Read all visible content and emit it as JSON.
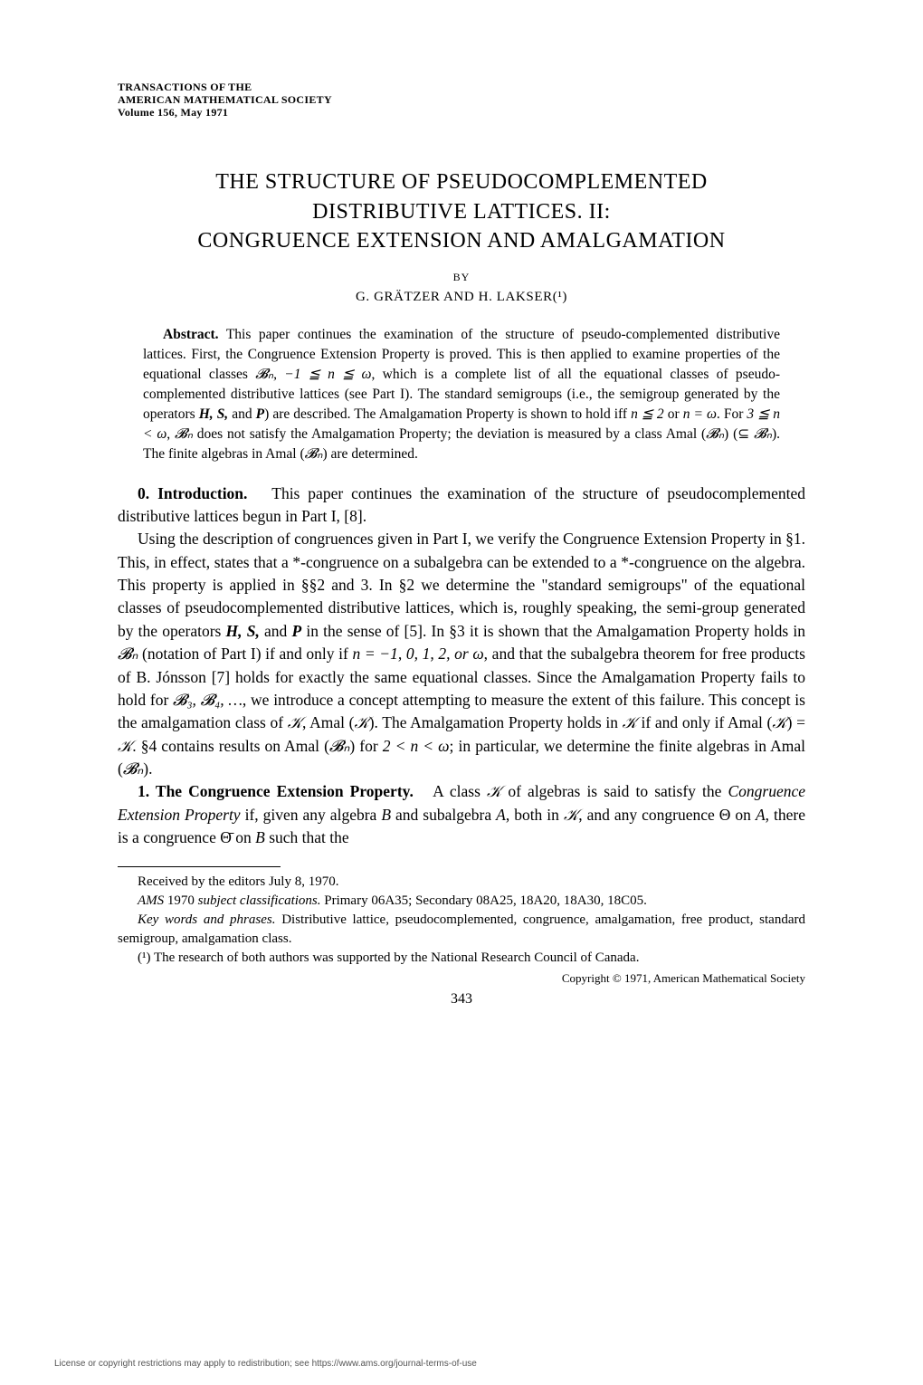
{
  "journal": {
    "line1": "TRANSACTIONS OF THE",
    "line2": "AMERICAN MATHEMATICAL SOCIETY",
    "line3": "Volume 156, May 1971"
  },
  "title": {
    "line1": "THE STRUCTURE OF PSEUDOCOMPLEMENTED",
    "line2": "DISTRIBUTIVE LATTICES. II:",
    "line3": "CONGRUENCE EXTENSION AND AMALGAMATION"
  },
  "by": "BY",
  "authors": "G. GRÄTZER AND H. LAKSER(¹)",
  "abstract": {
    "label": "Abstract.",
    "text1": "This paper continues the examination of the structure of pseudo-complemented distributive lattices. First, the Congruence Extension Property is proved. This is then applied to examine properties of the equational classes ",
    "math1": "𝓑ₙ, −1 ≦ n ≦ ω",
    "text2": ", which is a complete list of all the equational classes of pseudo-complemented distributive lattices (see Part I). The standard semigroups (i.e., the semigroup generated by the operators ",
    "ops": "H, S, ",
    "and": "and ",
    "opP": "P",
    "text3": ") are described. The Amalgamation Property is shown to hold iff ",
    "math2": "n ≦ 2",
    "or": " or ",
    "math3": "n = ω",
    "text4": ". For ",
    "math4": "3 ≦ n < ω",
    "text5": ", ",
    "math5": "𝓑ₙ",
    "text6": " does not satisfy the Amalgamation Property; the deviation is measured by a class Amal (",
    "math6": "𝓑ₙ",
    "text7": ") (⊆ ",
    "math7": "𝓑ₙ",
    "text8": "). The finite algebras in Amal (",
    "math8": "𝓑ₙ",
    "text9": ") are determined."
  },
  "section0": {
    "label": "0. Introduction.",
    "p1a": "This paper continues the examination of the structure of pseudocomplemented distributive lattices begun in Part I, [8].",
    "p2a": "Using the description of congruences given in Part I, we verify the Congruence Extension Property in §1. This, in effect, states that a *-congruence on a subalgebra can be extended to a *-congruence on the algebra. This property is applied in §§2 and 3. In §2 we determine the \"standard semigroups\" of the equational classes of pseudocomplemented distributive lattices, which is, roughly speaking, the semi-group generated by the operators ",
    "ops": "H, S, ",
    "and": "and ",
    "opP": "P",
    "p2b": " in the sense of [5]. In §3 it is shown that the Amalgamation Property holds in ",
    "Bn1": "𝓑ₙ",
    "p2c": " (notation of Part I) if and only if ",
    "nvals": "n = −1, 0, 1, 2, or ω",
    "p2d": ", and that the subalgebra theorem for free products of B. Jónsson [7] holds for exactly the same equational classes. Since the Amalgamation Property fails to hold for ",
    "B34": "𝓑₃, 𝓑₄, …",
    "p2e": ", we introduce a concept attempting to measure the extent of this failure. This concept is the amalgamation class of ",
    "K1": "𝒦",
    "p2f": ", Amal (",
    "K2": "𝒦",
    "p2g": "). The Amalgamation Property holds in ",
    "K3": "𝒦",
    "p2h": " if and only if Amal (",
    "K4": "𝒦",
    "p2i": ") = ",
    "K5": "𝒦",
    "p2j": ". §4 contains results on Amal (",
    "Bn2": "𝓑ₙ",
    "p2k": ") for ",
    "range": "2 < n < ω",
    "p2l": "; in particular, we determine the finite algebras in Amal (",
    "Bn3": "𝓑ₙ",
    "p2m": ")."
  },
  "section1": {
    "label": "1. The Congruence Extension Property.",
    "p1a": "A class ",
    "K1": "𝒦",
    "p1b": " of algebras is said to satisfy the ",
    "cep": "Congruence Extension Property",
    "p1c": " if, given any algebra ",
    "B": "B",
    "p1d": " and subalgebra ",
    "A": "A",
    "p1e": ", both in ",
    "K2": "𝒦",
    "p1f": ", and any congruence Θ on ",
    "A2": "A",
    "p1g": ", there is a congruence Θ̄ on ",
    "B2": "B",
    "p1h": " such that the"
  },
  "footnotes": {
    "received": "Received by the editors July 8, 1970.",
    "ams_label": "AMS",
    "ams_year": " 1970 ",
    "subj": "subject classifications.",
    "ams_text": " Primary 06A35; Secondary 08A25, 18A20, 18A30, 18C05.",
    "kw_label": "Key words and phrases.",
    "kw_text": " Distributive lattice, pseudocomplemented, congruence, amalgamation, free product, standard semigroup, amalgamation class.",
    "note1": "(¹) The research of both authors was supported by the National Research Council of Canada."
  },
  "copyright": "Copyright © 1971, American Mathematical Society",
  "page_number": "343",
  "license": "License or copyright restrictions may apply to redistribution; see https://www.ams.org/journal-terms-of-use"
}
